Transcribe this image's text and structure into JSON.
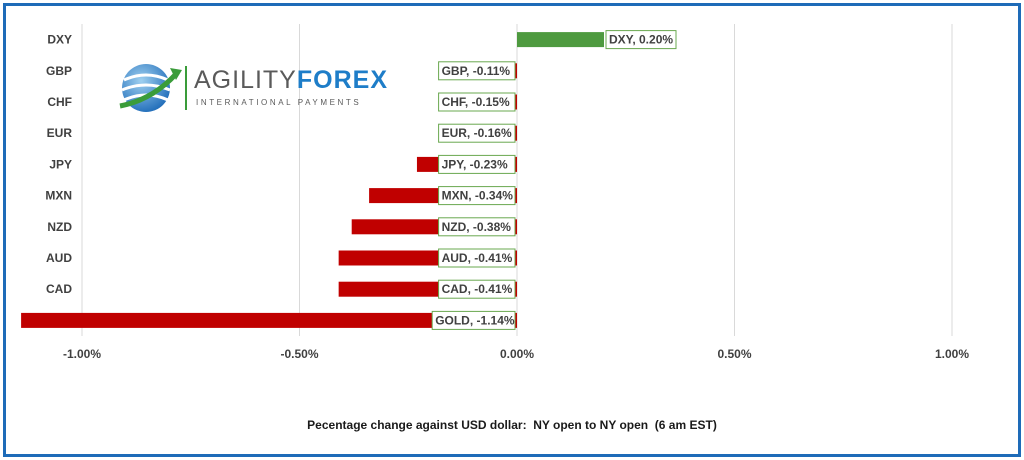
{
  "chart_data": {
    "type": "bar",
    "orientation": "horizontal",
    "categories": [
      "DXY",
      "GBP",
      "CHF",
      "EUR",
      "JPY",
      "MXN",
      "NZD",
      "AUD",
      "CAD",
      "GOLD"
    ],
    "values": [
      0.2,
      -0.11,
      -0.15,
      -0.16,
      -0.23,
      -0.34,
      -0.38,
      -0.41,
      -0.41,
      -1.14
    ],
    "data_labels": [
      "DXY, 0.20%",
      "GBP, -0.11%",
      "CHF, -0.15%",
      "EUR, -0.16%",
      "JPY, -0.23%",
      "MXN, -0.34%",
      "NZD, -0.38%",
      "AUD, -0.41%",
      "CAD, -0.41%",
      "GOLD, -1.14%"
    ],
    "xlim": [
      -1.0,
      1.0
    ],
    "xticks": [
      -1.0,
      -0.5,
      0,
      0.5,
      1.0
    ],
    "xtick_labels": [
      "-1.00%",
      "-0.50%",
      "0.00%",
      "0.50%",
      "1.00%"
    ],
    "xlabel": "Pecentage change against USD dollar:  NY open to NY open  (6 am EST)",
    "grid": "vertical",
    "colors": {
      "positive": "#4e9a3f",
      "negative": "#c00000",
      "grid": "#d9d9d9",
      "frame": "#1e6bb8",
      "label_border": "#6aa84f"
    }
  },
  "logo": {
    "word_a": "AGILITY",
    "word_b": "FOREX",
    "tagline": "INTERNATIONAL PAYMENTS"
  }
}
